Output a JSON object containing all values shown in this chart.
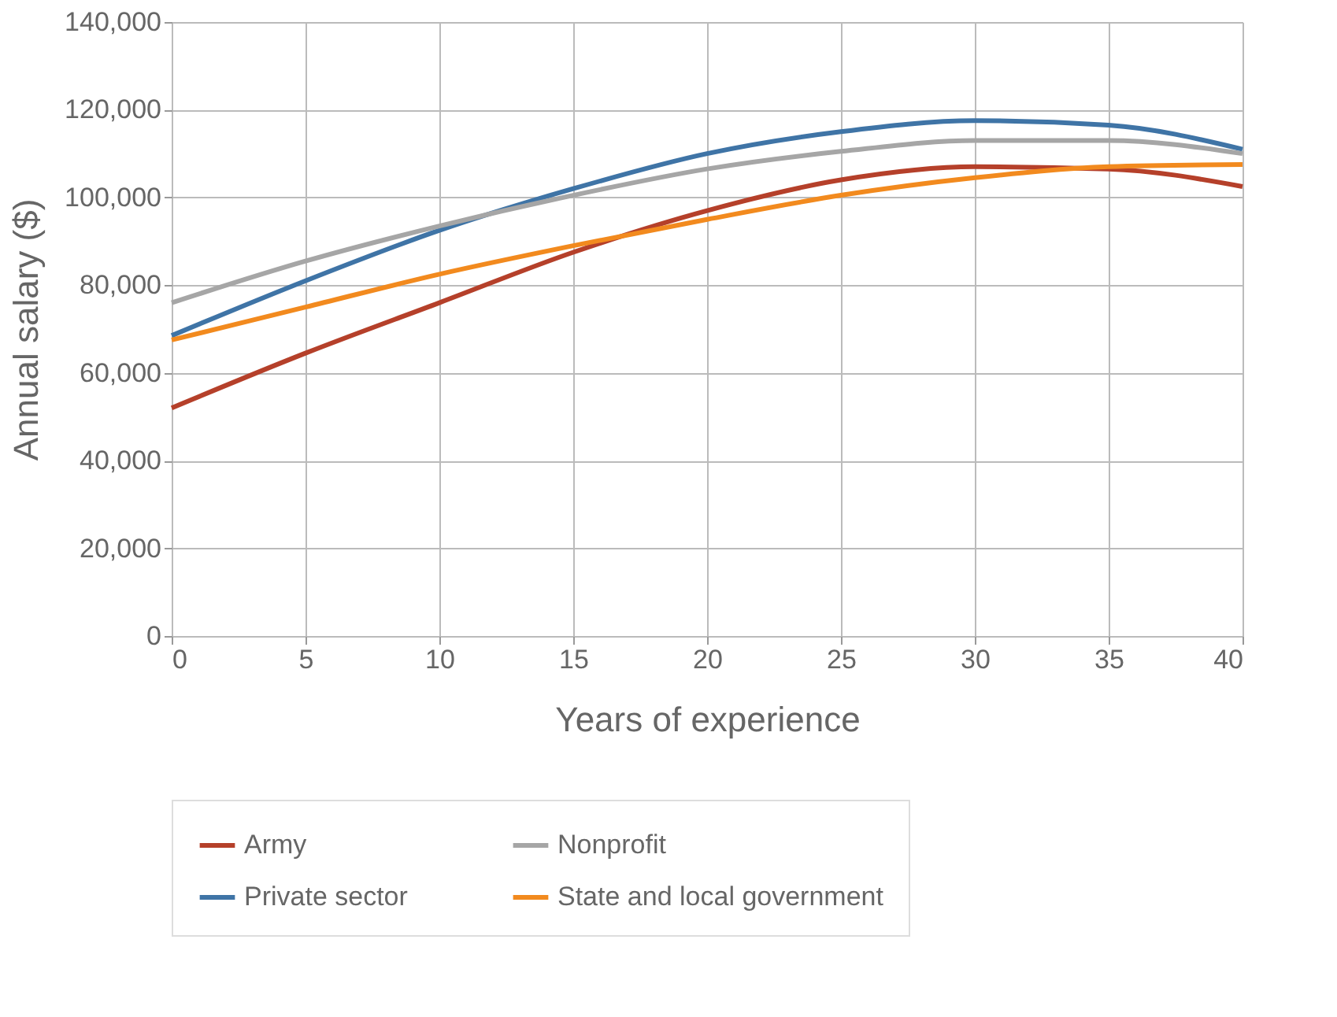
{
  "chart_data": {
    "type": "line",
    "xlabel": "Years of experience",
    "ylabel": "Annual salary ($)",
    "x": [
      0,
      5,
      10,
      15,
      20,
      25,
      30,
      35,
      40
    ],
    "series": [
      {
        "name": "Army",
        "color": "#b5402a",
        "values": [
          52000,
          64500,
          76000,
          87500,
          97000,
          104000,
          107000,
          106500,
          102500
        ]
      },
      {
        "name": "Private sector",
        "color": "#3f74a6",
        "values": [
          68500,
          81000,
          92500,
          102000,
          110000,
          115000,
          117500,
          116500,
          111000
        ]
      },
      {
        "name": "Nonprofit",
        "color": "#a6a6a6",
        "values": [
          76000,
          85500,
          93500,
          100500,
          106500,
          110500,
          113000,
          113000,
          110000
        ]
      },
      {
        "name": "State and local government",
        "color": "#f28a1e",
        "values": [
          67500,
          75000,
          82500,
          89000,
          95000,
          100500,
          104500,
          107000,
          107500
        ]
      }
    ],
    "xlim": [
      0,
      40
    ],
    "xticks": [
      0,
      5,
      10,
      15,
      20,
      25,
      30,
      35,
      40
    ],
    "ylim": [
      0,
      140000
    ],
    "yticks": [
      0,
      {
        "value": 20000,
        "label": "20,000"
      },
      {
        "value": 40000,
        "label": "40,000"
      },
      {
        "value": 60000,
        "label": "60,000"
      },
      {
        "value": 80000,
        "label": "80,000"
      },
      {
        "value": 100000,
        "label": "100,000"
      },
      {
        "value": 120000,
        "label": "120,000"
      },
      {
        "value": 140000,
        "label": "140,000"
      }
    ],
    "grid": true,
    "legend": "bottom",
    "marker": "none",
    "line_style": "solid"
  }
}
